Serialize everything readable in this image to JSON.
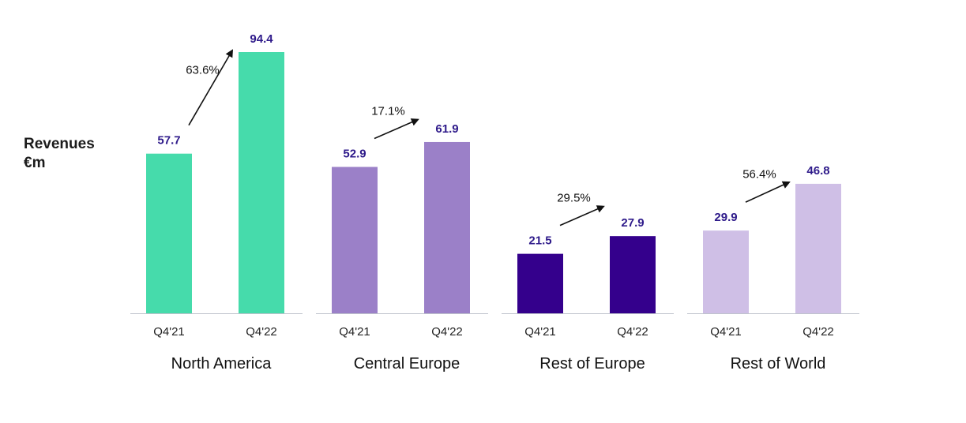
{
  "chart_data": {
    "type": "bar",
    "ylabel_lines": [
      "Revenues",
      "€m"
    ],
    "groups": [
      {
        "name": "North America",
        "color": "#46dbab",
        "categories": [
          "Q4'21",
          "Q4'22"
        ],
        "values": [
          57.7,
          94.4
        ],
        "growth": "63.6%"
      },
      {
        "name": "Central Europe",
        "color": "#9b80c8",
        "categories": [
          "Q4'21",
          "Q4'22"
        ],
        "values": [
          52.9,
          61.9
        ],
        "growth": "17.1%"
      },
      {
        "name": "Rest of  Europe",
        "color": "#34008c",
        "categories": [
          "Q4'21",
          "Q4'22"
        ],
        "values": [
          21.5,
          27.9
        ],
        "growth": "29.5%"
      },
      {
        "name": "Rest of World",
        "color": "#cfbfe6",
        "categories": [
          "Q4'21",
          "Q4'22"
        ],
        "values": [
          29.9,
          46.8
        ],
        "growth": "56.4%"
      }
    ],
    "value_label_color": "#2e1a8a",
    "ylim": [
      0,
      94.4
    ],
    "grid": false,
    "legend": "none"
  }
}
